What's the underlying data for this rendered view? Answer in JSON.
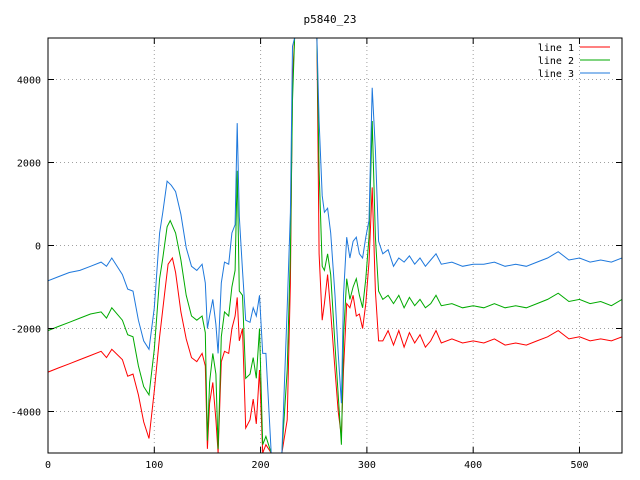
{
  "chart_data": {
    "type": "line",
    "title": "p5840_23",
    "xlabel": "",
    "ylabel": "",
    "xlim": [
      0,
      540
    ],
    "ylim": [
      -5000,
      5000
    ],
    "x_ticks": [
      0,
      100,
      200,
      300,
      400,
      500
    ],
    "y_ticks": [
      -4000,
      -2000,
      0,
      2000,
      4000
    ],
    "grid": true,
    "legend_position": "top-right",
    "series": [
      {
        "name": "line 1",
        "color": "#ff0000",
        "points": [
          [
            0,
            -3050
          ],
          [
            10,
            -2950
          ],
          [
            20,
            -2850
          ],
          [
            30,
            -2750
          ],
          [
            40,
            -2650
          ],
          [
            50,
            -2550
          ],
          [
            55,
            -2700
          ],
          [
            60,
            -2500
          ],
          [
            70,
            -2750
          ],
          [
            75,
            -3150
          ],
          [
            80,
            -3100
          ],
          [
            85,
            -3600
          ],
          [
            90,
            -4250
          ],
          [
            95,
            -4650
          ],
          [
            100,
            -3500
          ],
          [
            105,
            -2200
          ],
          [
            110,
            -1100
          ],
          [
            113,
            -450
          ],
          [
            117,
            -300
          ],
          [
            120,
            -650
          ],
          [
            125,
            -1600
          ],
          [
            130,
            -2250
          ],
          [
            135,
            -2700
          ],
          [
            140,
            -2800
          ],
          [
            145,
            -2600
          ],
          [
            148,
            -2900
          ],
          [
            150,
            -4900
          ],
          [
            152,
            -3800
          ],
          [
            155,
            -3300
          ],
          [
            158,
            -4200
          ],
          [
            160,
            -5000
          ],
          [
            163,
            -2800
          ],
          [
            166,
            -2550
          ],
          [
            170,
            -2600
          ],
          [
            173,
            -2000
          ],
          [
            176,
            -1700
          ],
          [
            178,
            -1250
          ],
          [
            180,
            -2300
          ],
          [
            183,
            -2000
          ],
          [
            186,
            -4400
          ],
          [
            190,
            -4200
          ],
          [
            193,
            -3700
          ],
          [
            196,
            -4300
          ],
          [
            199,
            -3000
          ],
          [
            202,
            -5000
          ],
          [
            205,
            -4800
          ],
          [
            210,
            -5000
          ],
          [
            220,
            -5000
          ],
          [
            225,
            -4200
          ],
          [
            228,
            -900
          ],
          [
            230,
            4000
          ],
          [
            232,
            5000
          ],
          [
            235,
            5000
          ],
          [
            240,
            5000
          ],
          [
            245,
            5000
          ],
          [
            250,
            5000
          ],
          [
            253,
            5000
          ],
          [
            255,
            -200
          ],
          [
            258,
            -1800
          ],
          [
            260,
            -1400
          ],
          [
            263,
            -700
          ],
          [
            266,
            -1600
          ],
          [
            270,
            -3000
          ],
          [
            273,
            -4000
          ],
          [
            276,
            -4600
          ],
          [
            278,
            -3000
          ],
          [
            281,
            -1400
          ],
          [
            284,
            -1500
          ],
          [
            287,
            -1200
          ],
          [
            290,
            -1700
          ],
          [
            293,
            -1650
          ],
          [
            296,
            -2000
          ],
          [
            299,
            -1400
          ],
          [
            302,
            -400
          ],
          [
            305,
            1400
          ],
          [
            308,
            -1100
          ],
          [
            311,
            -2300
          ],
          [
            315,
            -2300
          ],
          [
            320,
            -2050
          ],
          [
            325,
            -2400
          ],
          [
            330,
            -2050
          ],
          [
            335,
            -2450
          ],
          [
            340,
            -2100
          ],
          [
            345,
            -2350
          ],
          [
            350,
            -2150
          ],
          [
            355,
            -2450
          ],
          [
            360,
            -2300
          ],
          [
            365,
            -2050
          ],
          [
            370,
            -2350
          ],
          [
            380,
            -2250
          ],
          [
            390,
            -2350
          ],
          [
            400,
            -2300
          ],
          [
            410,
            -2350
          ],
          [
            420,
            -2250
          ],
          [
            430,
            -2400
          ],
          [
            440,
            -2350
          ],
          [
            450,
            -2400
          ],
          [
            460,
            -2300
          ],
          [
            470,
            -2200
          ],
          [
            480,
            -2050
          ],
          [
            490,
            -2250
          ],
          [
            500,
            -2200
          ],
          [
            510,
            -2300
          ],
          [
            520,
            -2250
          ],
          [
            530,
            -2300
          ],
          [
            540,
            -2200
          ]
        ]
      },
      {
        "name": "line 2",
        "color": "#00aa00",
        "points": [
          [
            0,
            -2050
          ],
          [
            10,
            -1950
          ],
          [
            20,
            -1850
          ],
          [
            30,
            -1750
          ],
          [
            40,
            -1650
          ],
          [
            50,
            -1600
          ],
          [
            55,
            -1750
          ],
          [
            60,
            -1500
          ],
          [
            70,
            -1800
          ],
          [
            75,
            -2150
          ],
          [
            80,
            -2200
          ],
          [
            85,
            -2900
          ],
          [
            90,
            -3400
          ],
          [
            95,
            -3600
          ],
          [
            100,
            -2500
          ],
          [
            105,
            -800
          ],
          [
            108,
            -300
          ],
          [
            112,
            450
          ],
          [
            115,
            600
          ],
          [
            120,
            300
          ],
          [
            125,
            -350
          ],
          [
            130,
            -1200
          ],
          [
            135,
            -1700
          ],
          [
            140,
            -1800
          ],
          [
            145,
            -1700
          ],
          [
            148,
            -2100
          ],
          [
            150,
            -4700
          ],
          [
            152,
            -3300
          ],
          [
            155,
            -2600
          ],
          [
            158,
            -3100
          ],
          [
            160,
            -4900
          ],
          [
            163,
            -2200
          ],
          [
            166,
            -1600
          ],
          [
            170,
            -1700
          ],
          [
            173,
            -1000
          ],
          [
            176,
            -600
          ],
          [
            178,
            1800
          ],
          [
            180,
            -1100
          ],
          [
            183,
            -1200
          ],
          [
            186,
            -3200
          ],
          [
            190,
            -3100
          ],
          [
            193,
            -2700
          ],
          [
            196,
            -3200
          ],
          [
            199,
            -2000
          ],
          [
            202,
            -4800
          ],
          [
            205,
            -4600
          ],
          [
            210,
            -5000
          ],
          [
            220,
            -5000
          ],
          [
            225,
            -3000
          ],
          [
            228,
            -200
          ],
          [
            230,
            3500
          ],
          [
            232,
            5000
          ],
          [
            235,
            5000
          ],
          [
            240,
            5000
          ],
          [
            245,
            5000
          ],
          [
            250,
            5000
          ],
          [
            253,
            5000
          ],
          [
            255,
            1800
          ],
          [
            258,
            -500
          ],
          [
            260,
            -600
          ],
          [
            263,
            -200
          ],
          [
            266,
            -700
          ],
          [
            270,
            -2400
          ],
          [
            273,
            -3600
          ],
          [
            276,
            -4800
          ],
          [
            278,
            -2200
          ],
          [
            281,
            -800
          ],
          [
            284,
            -1300
          ],
          [
            287,
            -1000
          ],
          [
            290,
            -800
          ],
          [
            293,
            -1200
          ],
          [
            296,
            -1500
          ],
          [
            299,
            -800
          ],
          [
            302,
            200
          ],
          [
            305,
            3000
          ],
          [
            308,
            200
          ],
          [
            311,
            -1100
          ],
          [
            315,
            -1300
          ],
          [
            320,
            -1200
          ],
          [
            325,
            -1400
          ],
          [
            330,
            -1200
          ],
          [
            335,
            -1500
          ],
          [
            340,
            -1250
          ],
          [
            345,
            -1450
          ],
          [
            350,
            -1300
          ],
          [
            355,
            -1500
          ],
          [
            360,
            -1400
          ],
          [
            365,
            -1200
          ],
          [
            370,
            -1450
          ],
          [
            380,
            -1400
          ],
          [
            390,
            -1500
          ],
          [
            400,
            -1450
          ],
          [
            410,
            -1500
          ],
          [
            420,
            -1400
          ],
          [
            430,
            -1500
          ],
          [
            440,
            -1450
          ],
          [
            450,
            -1500
          ],
          [
            460,
            -1400
          ],
          [
            470,
            -1300
          ],
          [
            480,
            -1150
          ],
          [
            490,
            -1350
          ],
          [
            500,
            -1300
          ],
          [
            510,
            -1400
          ],
          [
            520,
            -1350
          ],
          [
            530,
            -1450
          ],
          [
            540,
            -1300
          ]
        ]
      },
      {
        "name": "line 3",
        "color": "#1e78dc",
        "points": [
          [
            0,
            -850
          ],
          [
            10,
            -750
          ],
          [
            20,
            -650
          ],
          [
            30,
            -600
          ],
          [
            40,
            -500
          ],
          [
            50,
            -400
          ],
          [
            55,
            -500
          ],
          [
            60,
            -300
          ],
          [
            70,
            -700
          ],
          [
            75,
            -1050
          ],
          [
            80,
            -1100
          ],
          [
            85,
            -1800
          ],
          [
            90,
            -2300
          ],
          [
            95,
            -2500
          ],
          [
            100,
            -1500
          ],
          [
            105,
            300
          ],
          [
            108,
            800
          ],
          [
            112,
            1550
          ],
          [
            116,
            1450
          ],
          [
            120,
            1300
          ],
          [
            125,
            750
          ],
          [
            130,
            -50
          ],
          [
            135,
            -500
          ],
          [
            140,
            -600
          ],
          [
            145,
            -450
          ],
          [
            148,
            -900
          ],
          [
            150,
            -2000
          ],
          [
            152,
            -1700
          ],
          [
            155,
            -1300
          ],
          [
            158,
            -1900
          ],
          [
            160,
            -2600
          ],
          [
            163,
            -900
          ],
          [
            166,
            -400
          ],
          [
            170,
            -450
          ],
          [
            173,
            300
          ],
          [
            176,
            500
          ],
          [
            178,
            2950
          ],
          [
            180,
            700
          ],
          [
            183,
            -600
          ],
          [
            186,
            -1800
          ],
          [
            190,
            -1850
          ],
          [
            193,
            -1500
          ],
          [
            196,
            -1700
          ],
          [
            199,
            -1200
          ],
          [
            202,
            -2600
          ],
          [
            205,
            -2600
          ],
          [
            210,
            -5000
          ],
          [
            220,
            -5000
          ],
          [
            225,
            -1500
          ],
          [
            228,
            800
          ],
          [
            230,
            4800
          ],
          [
            232,
            5000
          ],
          [
            235,
            5000
          ],
          [
            240,
            5000
          ],
          [
            245,
            5000
          ],
          [
            250,
            5000
          ],
          [
            253,
            5000
          ],
          [
            255,
            3000
          ],
          [
            258,
            1200
          ],
          [
            260,
            800
          ],
          [
            263,
            900
          ],
          [
            266,
            300
          ],
          [
            270,
            -1200
          ],
          [
            273,
            -2600
          ],
          [
            276,
            -3800
          ],
          [
            278,
            -1200
          ],
          [
            281,
            200
          ],
          [
            284,
            -300
          ],
          [
            287,
            100
          ],
          [
            290,
            200
          ],
          [
            293,
            -200
          ],
          [
            296,
            -300
          ],
          [
            299,
            200
          ],
          [
            302,
            600
          ],
          [
            305,
            3800
          ],
          [
            308,
            2300
          ],
          [
            311,
            100
          ],
          [
            315,
            -200
          ],
          [
            320,
            -100
          ],
          [
            325,
            -500
          ],
          [
            330,
            -300
          ],
          [
            335,
            -400
          ],
          [
            340,
            -250
          ],
          [
            345,
            -450
          ],
          [
            350,
            -300
          ],
          [
            355,
            -500
          ],
          [
            360,
            -350
          ],
          [
            365,
            -200
          ],
          [
            370,
            -450
          ],
          [
            380,
            -400
          ],
          [
            390,
            -500
          ],
          [
            400,
            -450
          ],
          [
            410,
            -450
          ],
          [
            420,
            -400
          ],
          [
            430,
            -500
          ],
          [
            440,
            -450
          ],
          [
            450,
            -500
          ],
          [
            460,
            -400
          ],
          [
            470,
            -300
          ],
          [
            480,
            -150
          ],
          [
            490,
            -350
          ],
          [
            500,
            -300
          ],
          [
            510,
            -400
          ],
          [
            520,
            -350
          ],
          [
            530,
            -400
          ],
          [
            540,
            -300
          ]
        ]
      }
    ]
  }
}
